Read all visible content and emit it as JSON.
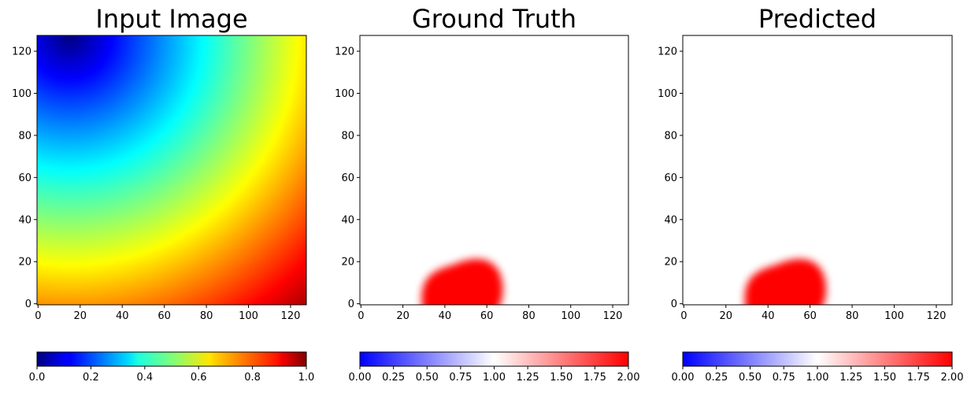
{
  "chart_data": [
    {
      "type": "heatmap",
      "title": "Input Image",
      "colormap": "jet",
      "x_ticks": [
        0,
        20,
        40,
        60,
        80,
        100,
        120
      ],
      "y_ticks": [
        0,
        20,
        40,
        60,
        80,
        100,
        120
      ],
      "xlim": [
        0,
        127
      ],
      "ylim": [
        0,
        127
      ],
      "field": "smooth gradient: minimum near (15,127), maximum near (127,0)",
      "colorbar": {
        "orientation": "horizontal",
        "range": [
          0,
          1
        ],
        "ticks": [
          "0.0",
          "0.2",
          "0.4",
          "0.6",
          "0.8",
          "1.0"
        ],
        "tick_values": [
          0,
          0.2,
          0.4,
          0.6,
          0.8,
          1.0
        ]
      }
    },
    {
      "type": "heatmap",
      "title": "Ground Truth",
      "colormap": "bwr",
      "x_ticks": [
        0,
        20,
        40,
        60,
        80,
        100,
        120
      ],
      "y_ticks": [
        0,
        20,
        40,
        60,
        80,
        100,
        120
      ],
      "xlim": [
        0,
        127
      ],
      "ylim": [
        0,
        127
      ],
      "background_value": 1.0,
      "blob": {
        "center": [
          47,
          7
        ],
        "x_range": [
          28,
          68
        ],
        "y_range": [
          0,
          22
        ],
        "peak_value": 2.0
      },
      "colorbar": {
        "orientation": "horizontal",
        "range": [
          0,
          2
        ],
        "ticks": [
          "0.00",
          "0.25",
          "0.50",
          "0.75",
          "1.00",
          "1.25",
          "1.50",
          "1.75",
          "2.00"
        ],
        "tick_values": [
          0,
          0.25,
          0.5,
          0.75,
          1.0,
          1.25,
          1.5,
          1.75,
          2.0
        ]
      }
    },
    {
      "type": "heatmap",
      "title": "Predicted",
      "colormap": "bwr",
      "x_ticks": [
        0,
        20,
        40,
        60,
        80,
        100,
        120
      ],
      "y_ticks": [
        0,
        20,
        40,
        60,
        80,
        100,
        120
      ],
      "xlim": [
        0,
        127
      ],
      "ylim": [
        0,
        127
      ],
      "background_value": 1.0,
      "blob": {
        "center": [
          47,
          7
        ],
        "x_range": [
          28,
          68
        ],
        "y_range": [
          0,
          22
        ],
        "peak_value": 2.0
      },
      "colorbar": {
        "orientation": "horizontal",
        "range": [
          0,
          2
        ],
        "ticks": [
          "0.00",
          "0.25",
          "0.50",
          "0.75",
          "1.00",
          "1.25",
          "1.50",
          "1.75",
          "2.00"
        ],
        "tick_values": [
          0,
          0.25,
          0.5,
          0.75,
          1.0,
          1.25,
          1.5,
          1.75,
          2.0
        ]
      }
    }
  ]
}
